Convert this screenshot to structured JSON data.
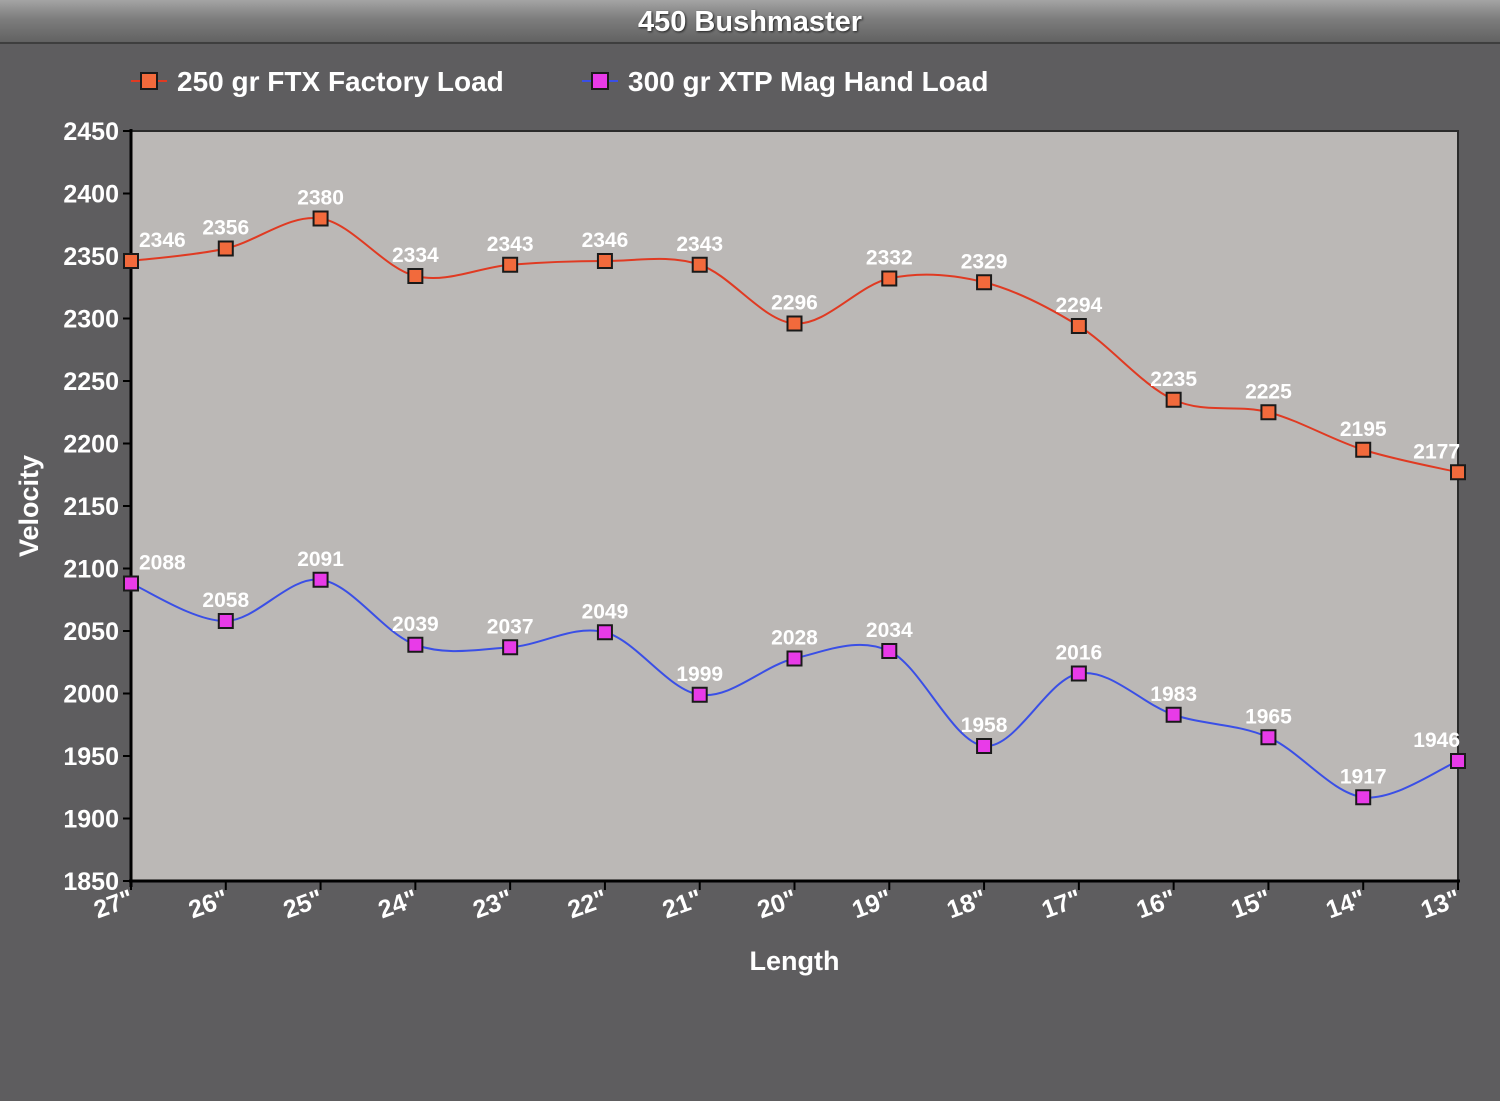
{
  "chart_data": {
    "type": "line",
    "title": "450 Bushmaster",
    "xlabel": "Length",
    "ylabel": "Velocity",
    "categories": [
      "27\"",
      "26\"",
      "25\"",
      "24\"",
      "23\"",
      "22\"",
      "21\"",
      "20\"",
      "19\"",
      "18\"",
      "17\"",
      "16\"",
      "15\"",
      "14\"",
      "13\""
    ],
    "ylim": [
      1850,
      2450
    ],
    "yticks": [
      1850,
      1900,
      1950,
      2000,
      2050,
      2100,
      2150,
      2200,
      2250,
      2300,
      2350,
      2400,
      2450
    ],
    "legend_position": "top-left",
    "grid": false,
    "plot_background": "#bbb8b6",
    "series": [
      {
        "name": "250 gr FTX Factory Load",
        "color": "#e03a22",
        "marker_color": "#f26a3c",
        "values": [
          2346,
          2356,
          2380,
          2334,
          2343,
          2346,
          2343,
          2296,
          2332,
          2329,
          2294,
          2235,
          2225,
          2195,
          2177
        ]
      },
      {
        "name": "300 gr XTP Mag Hand Load",
        "color": "#3a4fe6",
        "marker_color": "#e83be8",
        "values": [
          2088,
          2058,
          2091,
          2039,
          2037,
          2049,
          1999,
          2028,
          2034,
          1958,
          2016,
          1983,
          1965,
          1917,
          1946
        ]
      }
    ]
  }
}
